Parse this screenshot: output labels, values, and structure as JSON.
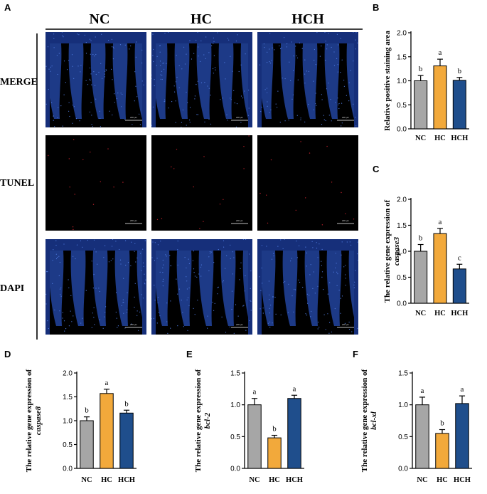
{
  "panel_a": {
    "letter": "A",
    "columns": [
      "NC",
      "HC",
      "HCH"
    ],
    "rows": [
      "MERGE",
      "TUNEL",
      "DAPI"
    ],
    "scale_bar_label": "200 μm"
  },
  "chart_data": [
    {
      "letter": "B",
      "type": "bar",
      "categories": [
        "NC",
        "HC",
        "HCH"
      ],
      "values": [
        1.0,
        1.31,
        1.01
      ],
      "errors": [
        0.11,
        0.14,
        0.06
      ],
      "letters": [
        "b",
        "a",
        "b"
      ],
      "ylabel": "Relative positive staining area",
      "ylabel_italic": "",
      "ylim": [
        0,
        2.0
      ],
      "yticks": [
        "0.0",
        "0.5",
        "1.0",
        "1.5",
        "2.0"
      ],
      "colors": [
        "#a6a6a6",
        "#f2a93b",
        "#1f4e8c"
      ]
    },
    {
      "letter": "C",
      "type": "bar",
      "categories": [
        "NC",
        "HC",
        "HCH"
      ],
      "values": [
        1.0,
        1.34,
        0.66
      ],
      "errors": [
        0.13,
        0.1,
        0.09
      ],
      "letters": [
        "b",
        "a",
        "c"
      ],
      "ylabel": "The relative gene expression of",
      "ylabel_italic": "caspase3",
      "ylim": [
        0,
        2.0
      ],
      "yticks": [
        "0.0",
        "0.5",
        "1.0",
        "1.5",
        "2.0"
      ],
      "colors": [
        "#a6a6a6",
        "#f2a93b",
        "#1f4e8c"
      ]
    },
    {
      "letter": "D",
      "type": "bar",
      "categories": [
        "NC",
        "HC",
        "HCH"
      ],
      "values": [
        1.0,
        1.57,
        1.16
      ],
      "errors": [
        0.08,
        0.09,
        0.06
      ],
      "letters": [
        "b",
        "a",
        "b"
      ],
      "ylabel": "The relative gene expression of",
      "ylabel_italic": "caspase8",
      "ylim": [
        0,
        2.0
      ],
      "yticks": [
        "0.0",
        "0.5",
        "1.0",
        "1.5",
        "2.0"
      ],
      "colors": [
        "#a6a6a6",
        "#f2a93b",
        "#1f4e8c"
      ]
    },
    {
      "letter": "E",
      "type": "bar",
      "categories": [
        "NC",
        "HC",
        "HCH"
      ],
      "values": [
        1.0,
        0.48,
        1.1
      ],
      "errors": [
        0.1,
        0.04,
        0.05
      ],
      "letters": [
        "a",
        "b",
        "a"
      ],
      "ylabel": "The relative gene expression of",
      "ylabel_italic": "bcl-2",
      "ylim": [
        0,
        1.5
      ],
      "yticks": [
        "0.0",
        "0.5",
        "1.0",
        "1.5"
      ],
      "colors": [
        "#a6a6a6",
        "#f2a93b",
        "#1f4e8c"
      ]
    },
    {
      "letter": "F",
      "type": "bar",
      "categories": [
        "NC",
        "HC",
        "HCH"
      ],
      "values": [
        1.0,
        0.55,
        1.02
      ],
      "errors": [
        0.12,
        0.06,
        0.12
      ],
      "letters": [
        "a",
        "b",
        "a"
      ],
      "ylabel": "The relative gene expression of",
      "ylabel_italic": "bcl-xl",
      "ylim": [
        0,
        1.5
      ],
      "yticks": [
        "0.0",
        "0.5",
        "1.0",
        "1.5"
      ],
      "colors": [
        "#a6a6a6",
        "#f2a93b",
        "#1f4e8c"
      ]
    }
  ]
}
